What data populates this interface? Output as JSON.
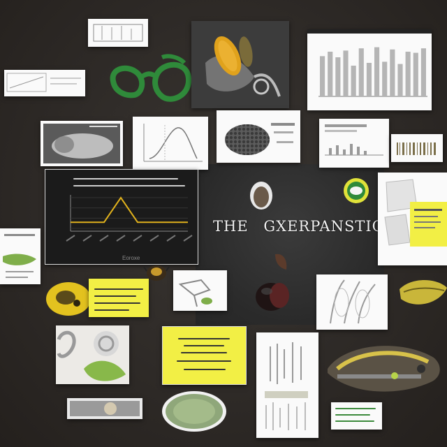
{
  "title": {
    "word1": "THE",
    "word2": "GXERPANSTION"
  },
  "chart_panel": {
    "caption": "Eoroxe",
    "line_values": [
      1,
      1,
      1,
      5,
      1,
      1,
      1,
      1
    ],
    "colors": {
      "line": "#e1b21c",
      "panel": "#1b1b1b"
    }
  },
  "bar_chart_card": {
    "values": [
      72,
      80,
      70,
      82,
      55,
      86,
      60,
      88,
      62,
      84,
      58,
      80,
      78,
      86
    ],
    "bar_color": "#b5b5b5"
  },
  "colors": {
    "background": "#2e2a27",
    "accent_yellow": "#f2ef45",
    "accent_green": "#2f8a3a"
  }
}
